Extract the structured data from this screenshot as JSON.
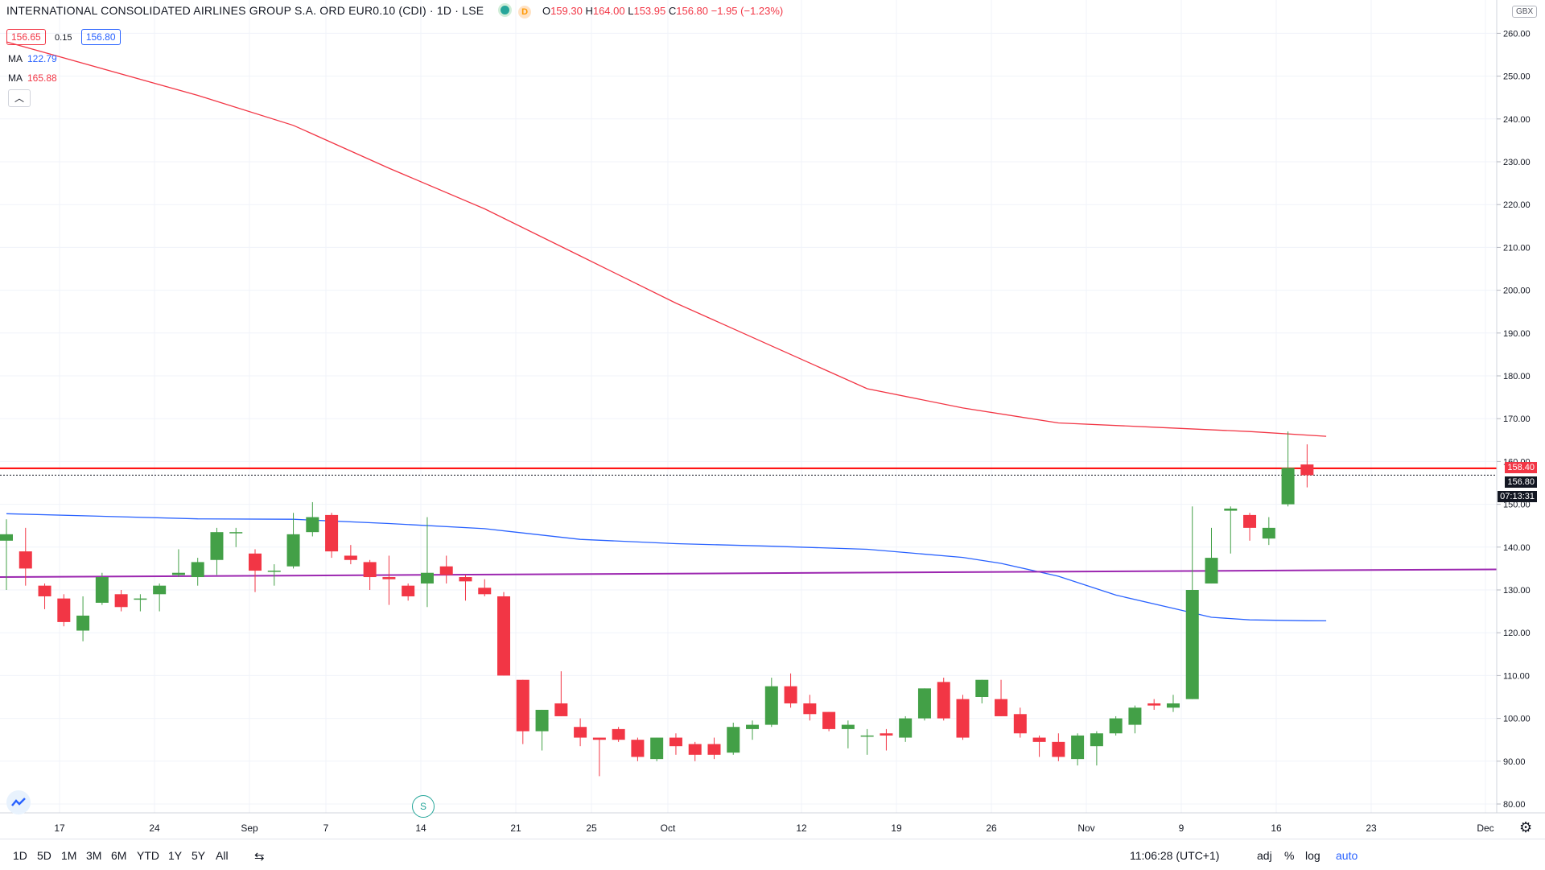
{
  "header": {
    "symbol": "INTERNATIONAL CONSOLIDATED AIRLINES GROUP S.A. ORD EUR0.10 (CDI) · 1D · LSE",
    "flag": "D",
    "open_k": "O",
    "open": "159.30",
    "high_k": "H",
    "high": "164.00",
    "low_k": "L",
    "low": "153.95",
    "close_k": "C",
    "close": "156.80",
    "change": "−1.95 (−1.23%)",
    "bid": "156.65",
    "spread": "0.15",
    "ask": "156.80"
  },
  "indicators": [
    {
      "label": "MA",
      "value": "122.79",
      "color": "#2962ff"
    },
    {
      "label": "MA",
      "value": "165.88",
      "color": "#f23645"
    }
  ],
  "collapse_icon": "chevron-up-icon",
  "currency": "GBX",
  "price_tags": {
    "high_line": "158.40",
    "last": "156.80",
    "countdown": "07:13:31"
  },
  "bottom": {
    "timeframes": [
      "1D",
      "5D",
      "1M",
      "3M",
      "6M",
      "YTD",
      "1Y",
      "5Y",
      "All"
    ],
    "time": "11:06:28 (UTC+1)",
    "adj": "adj",
    "pct": "%",
    "log": "log",
    "auto": "auto"
  },
  "splits_label": "S",
  "colors": {
    "up": "#43a047",
    "down": "#f23645",
    "ma_slow": "#f23645",
    "ma_fast": "#2962ff",
    "hline_red": "#ff0000",
    "hline_purple": "#9c27b0"
  },
  "chart_data": {
    "type": "candlestick",
    "y_axis_ticks": [
      80,
      90,
      100,
      110,
      120,
      130,
      140,
      150,
      160,
      170,
      180,
      190,
      200,
      210,
      220,
      230,
      240,
      250,
      260
    ],
    "x_axis_labels": [
      "17",
      "24",
      "Sep",
      "7",
      "14",
      "21",
      "25",
      "Oct",
      "12",
      "19",
      "26",
      "Nov",
      "9",
      "16",
      "23",
      "Dec"
    ],
    "ylim": [
      78,
      264
    ],
    "candles": [
      {
        "date": "2020-08-13",
        "o": 141.5,
        "h": 146.5,
        "l": 130.0,
        "c": 143.0
      },
      {
        "date": "2020-08-14",
        "o": 139.0,
        "h": 144.5,
        "l": 131.0,
        "c": 135.0
      },
      {
        "date": "2020-08-17",
        "o": 131.0,
        "h": 131.5,
        "l": 125.5,
        "c": 128.5
      },
      {
        "date": "2020-08-18",
        "o": 128.0,
        "h": 129.0,
        "l": 121.5,
        "c": 122.5
      },
      {
        "date": "2020-08-19",
        "o": 120.5,
        "h": 128.5,
        "l": 118.0,
        "c": 124.0
      },
      {
        "date": "2020-08-20",
        "o": 127.0,
        "h": 134.0,
        "l": 126.5,
        "c": 133.0
      },
      {
        "date": "2020-08-21",
        "o": 129.0,
        "h": 130.0,
        "l": 125.0,
        "c": 126.0
      },
      {
        "date": "2020-08-24",
        "o": 128.0,
        "h": 129.0,
        "l": 125.0,
        "c": 128.0
      },
      {
        "date": "2020-08-25",
        "o": 129.0,
        "h": 131.5,
        "l": 125.0,
        "c": 131.0
      },
      {
        "date": "2020-08-26",
        "o": 133.5,
        "h": 139.5,
        "l": 133.0,
        "c": 134.0
      },
      {
        "date": "2020-08-27",
        "o": 133.0,
        "h": 137.5,
        "l": 131.0,
        "c": 136.5
      },
      {
        "date": "2020-08-28",
        "o": 137.0,
        "h": 144.5,
        "l": 133.5,
        "c": 143.5
      },
      {
        "date": "2020-08-31",
        "o": 143.5,
        "h": 144.5,
        "l": 140.0,
        "c": 143.5
      },
      {
        "date": "2020-09-01",
        "o": 138.5,
        "h": 139.5,
        "l": 129.5,
        "c": 134.5
      },
      {
        "date": "2020-09-02",
        "o": 134.5,
        "h": 136.0,
        "l": 131.0,
        "c": 134.5
      },
      {
        "date": "2020-09-03",
        "o": 135.5,
        "h": 148.0,
        "l": 135.0,
        "c": 143.0
      },
      {
        "date": "2020-09-04",
        "o": 143.5,
        "h": 150.5,
        "l": 142.5,
        "c": 147.0
      },
      {
        "date": "2020-09-07",
        "o": 147.5,
        "h": 148.0,
        "l": 137.5,
        "c": 139.0
      },
      {
        "date": "2020-09-08",
        "o": 138.0,
        "h": 140.5,
        "l": 136.0,
        "c": 137.0
      },
      {
        "date": "2020-09-09",
        "o": 136.5,
        "h": 137.0,
        "l": 130.0,
        "c": 133.0
      },
      {
        "date": "2020-09-10",
        "o": 133.0,
        "h": 138.0,
        "l": 126.5,
        "c": 132.5
      },
      {
        "date": "2020-09-11",
        "o": 131.0,
        "h": 131.5,
        "l": 127.5,
        "c": 128.5
      },
      {
        "date": "2020-09-14",
        "o": 131.5,
        "h": 147.0,
        "l": 126.0,
        "c": 134.0
      },
      {
        "date": "2020-09-15",
        "o": 135.5,
        "h": 138.0,
        "l": 131.5,
        "c": 133.5
      },
      {
        "date": "2020-09-16",
        "o": 133.0,
        "h": 133.5,
        "l": 127.5,
        "c": 132.0
      },
      {
        "date": "2020-09-17",
        "o": 130.5,
        "h": 132.5,
        "l": 128.5,
        "c": 129.0
      },
      {
        "date": "2020-09-18",
        "o": 128.5,
        "h": 129.5,
        "l": 110.0,
        "c": 110.0
      },
      {
        "date": "2020-09-21",
        "o": 109.0,
        "h": 109.0,
        "l": 94.0,
        "c": 97.0
      },
      {
        "date": "2020-09-22",
        "o": 97.0,
        "h": 102.0,
        "l": 92.5,
        "c": 102.0
      },
      {
        "date": "2020-09-23",
        "o": 103.5,
        "h": 111.0,
        "l": 100.5,
        "c": 100.5
      },
      {
        "date": "2020-09-24",
        "o": 98.0,
        "h": 100.0,
        "l": 93.5,
        "c": 95.5
      },
      {
        "date": "2020-09-25",
        "o": 95.5,
        "h": 95.5,
        "l": 86.5,
        "c": 95.0
      },
      {
        "date": "2020-09-28",
        "o": 97.5,
        "h": 98.0,
        "l": 94.5,
        "c": 95.0
      },
      {
        "date": "2020-09-29",
        "o": 95.0,
        "h": 95.5,
        "l": 90.0,
        "c": 91.0
      },
      {
        "date": "2020-09-30",
        "o": 90.5,
        "h": 95.5,
        "l": 90.0,
        "c": 95.5
      },
      {
        "date": "2020-10-01",
        "o": 95.5,
        "h": 96.5,
        "l": 91.5,
        "c": 93.5
      },
      {
        "date": "2020-10-02",
        "o": 94.0,
        "h": 94.5,
        "l": 90.0,
        "c": 91.5
      },
      {
        "date": "2020-10-05",
        "o": 94.0,
        "h": 95.5,
        "l": 90.5,
        "c": 91.5
      },
      {
        "date": "2020-10-06",
        "o": 92.0,
        "h": 99.0,
        "l": 91.5,
        "c": 98.0
      },
      {
        "date": "2020-10-07",
        "o": 97.5,
        "h": 99.5,
        "l": 95.0,
        "c": 98.5
      },
      {
        "date": "2020-10-08",
        "o": 98.5,
        "h": 109.5,
        "l": 98.0,
        "c": 107.5
      },
      {
        "date": "2020-10-09",
        "o": 107.5,
        "h": 110.5,
        "l": 102.5,
        "c": 103.5
      },
      {
        "date": "2020-10-12",
        "o": 103.5,
        "h": 105.5,
        "l": 99.5,
        "c": 101.0
      },
      {
        "date": "2020-10-13",
        "o": 101.5,
        "h": 101.5,
        "l": 97.0,
        "c": 97.5
      },
      {
        "date": "2020-10-14",
        "o": 97.5,
        "h": 99.5,
        "l": 93.0,
        "c": 98.5
      },
      {
        "date": "2020-10-15",
        "o": 96.0,
        "h": 97.5,
        "l": 91.5,
        "c": 96.0
      },
      {
        "date": "2020-10-16",
        "o": 96.5,
        "h": 97.5,
        "l": 92.5,
        "c": 96.0
      },
      {
        "date": "2020-10-19",
        "o": 95.5,
        "h": 100.5,
        "l": 94.5,
        "c": 100.0
      },
      {
        "date": "2020-10-20",
        "o": 100.0,
        "h": 107.0,
        "l": 99.5,
        "c": 107.0
      },
      {
        "date": "2020-10-21",
        "o": 108.5,
        "h": 109.5,
        "l": 99.5,
        "c": 100.0
      },
      {
        "date": "2020-10-22",
        "o": 104.5,
        "h": 105.5,
        "l": 95.0,
        "c": 95.5
      },
      {
        "date": "2020-10-23",
        "o": 105.0,
        "h": 109.0,
        "l": 103.5,
        "c": 109.0
      },
      {
        "date": "2020-10-26",
        "o": 104.5,
        "h": 109.0,
        "l": 100.5,
        "c": 100.5
      },
      {
        "date": "2020-10-27",
        "o": 101.0,
        "h": 102.5,
        "l": 95.5,
        "c": 96.5
      },
      {
        "date": "2020-10-28",
        "o": 95.5,
        "h": 96.0,
        "l": 91.0,
        "c": 94.5
      },
      {
        "date": "2020-10-29",
        "o": 94.5,
        "h": 96.5,
        "l": 90.0,
        "c": 91.0
      },
      {
        "date": "2020-10-30",
        "o": 90.5,
        "h": 96.5,
        "l": 89.0,
        "c": 96.0
      },
      {
        "date": "2020-11-02",
        "o": 93.5,
        "h": 97.0,
        "l": 89.0,
        "c": 96.5
      },
      {
        "date": "2020-11-03",
        "o": 96.5,
        "h": 100.5,
        "l": 96.0,
        "c": 100.0
      },
      {
        "date": "2020-11-04",
        "o": 98.5,
        "h": 103.0,
        "l": 96.5,
        "c": 102.5
      },
      {
        "date": "2020-11-05",
        "o": 103.5,
        "h": 104.5,
        "l": 102.0,
        "c": 103.0
      },
      {
        "date": "2020-11-06",
        "o": 102.5,
        "h": 105.5,
        "l": 101.5,
        "c": 103.5
      },
      {
        "date": "2020-11-09",
        "o": 104.5,
        "h": 149.5,
        "l": 104.5,
        "c": 130.0
      },
      {
        "date": "2020-11-10",
        "o": 131.5,
        "h": 144.5,
        "l": 131.5,
        "c": 137.5
      },
      {
        "date": "2020-11-11",
        "o": 148.5,
        "h": 149.5,
        "l": 138.5,
        "c": 149.0
      },
      {
        "date": "2020-11-12",
        "o": 147.5,
        "h": 148.0,
        "l": 141.5,
        "c": 144.5
      },
      {
        "date": "2020-11-13",
        "o": 142.0,
        "h": 147.0,
        "l": 140.5,
        "c": 144.5
      },
      {
        "date": "2020-11-16",
        "o": 150.0,
        "h": 167.0,
        "l": 149.5,
        "c": 158.5
      },
      {
        "date": "2020-11-17",
        "o": 159.3,
        "h": 164.0,
        "l": 153.95,
        "c": 156.8
      }
    ],
    "series": [
      {
        "name": "MA",
        "last": 122.79,
        "values": [
          [
            0,
            147.8
          ],
          [
            10,
            146.6
          ],
          [
            15,
            146.5
          ],
          [
            20,
            145.5
          ],
          [
            25,
            144.3
          ],
          [
            30,
            141.8
          ],
          [
            35,
            140.8
          ],
          [
            40,
            140.2
          ],
          [
            45,
            139.5
          ],
          [
            50,
            137.6
          ],
          [
            52,
            136.2
          ],
          [
            55,
            133.2
          ],
          [
            58,
            128.8
          ],
          [
            61,
            125.7
          ],
          [
            63,
            123.6
          ],
          [
            65,
            123.0
          ],
          [
            68,
            122.8
          ],
          [
            69,
            122.79
          ]
        ]
      },
      {
        "name": "MA",
        "last": 165.88,
        "values": [
          [
            0,
            258.0
          ],
          [
            10,
            245.5
          ],
          [
            15,
            238.5
          ],
          [
            20,
            228.5
          ],
          [
            25,
            219.0
          ],
          [
            30,
            208.0
          ],
          [
            35,
            197.0
          ],
          [
            40,
            187.0
          ],
          [
            45,
            177.0
          ],
          [
            50,
            172.5
          ],
          [
            55,
            169.0
          ],
          [
            60,
            168.0
          ],
          [
            65,
            167.0
          ],
          [
            69,
            165.88
          ]
        ]
      }
    ],
    "horizontal_lines": [
      158.4,
      156.8
    ],
    "trend_line": [
      [
        0,
        133.0
      ],
      [
        78,
        134.8
      ]
    ],
    "grid": true
  }
}
